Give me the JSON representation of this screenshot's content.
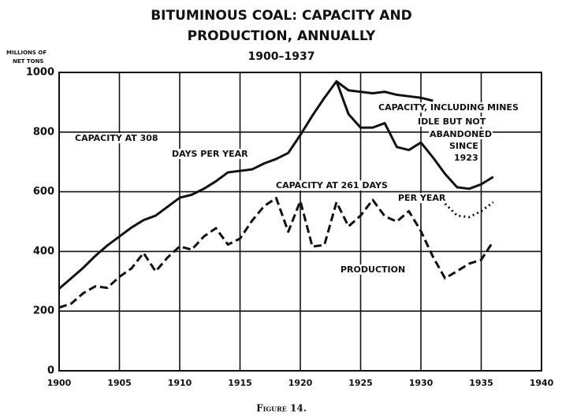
{
  "chart_data": {
    "type": "line",
    "title": [
      "BITUMINOUS COAL:  CAPACITY AND",
      "PRODUCTION, ANNUALLY"
    ],
    "subtitle": "1900–1937",
    "y_axis_label": [
      "MILLIONS OF",
      "NET TONS"
    ],
    "caption": "Figure 14.",
    "xlim": [
      1900,
      1940
    ],
    "xticks": [
      1900,
      1905,
      1910,
      1915,
      1920,
      1925,
      1930,
      1935,
      1940
    ],
    "ylim": [
      0,
      1000
    ],
    "yticks": [
      0,
      200,
      400,
      600,
      800,
      1000
    ],
    "grid": true,
    "series": [
      {
        "color": "#111111",
        "style": "solid",
        "x": [
          1900,
          1901,
          1902,
          1903,
          1904,
          1905,
          1906,
          1907,
          1908,
          1909,
          1910,
          1911,
          1912,
          1913,
          1914,
          1915,
          1916,
          1917,
          1918,
          1919,
          1920,
          1921,
          1922,
          1923,
          1924,
          1925,
          1926,
          1927,
          1928,
          1929,
          1930,
          1931,
          1932,
          1933,
          1934,
          1935,
          1936
        ],
        "values": [
          275,
          310,
          345,
          385,
          420,
          450,
          480,
          505,
          520,
          550,
          580,
          590,
          610,
          635,
          665,
          670,
          675,
          695,
          710,
          730,
          790,
          855,
          915,
          970,
          860,
          815,
          815,
          830,
          750,
          740,
          765,
          715,
          660,
          615,
          610,
          625,
          650
        ]
      },
      {
        "color": "#111111",
        "style": "solid",
        "x": [
          1923,
          1924,
          1925,
          1926,
          1927,
          1928,
          1929,
          1930,
          1931
        ],
        "values": [
          970,
          940,
          935,
          930,
          935,
          925,
          920,
          915,
          905
        ]
      },
      {
        "color": "#111111",
        "style": "dotted",
        "x": [
          1932,
          1933,
          1934,
          1935,
          1936
        ],
        "values": [
          560,
          520,
          515,
          535,
          565
        ]
      },
      {
        "color": "#111111",
        "style": "dashed",
        "x": [
          1900,
          1901,
          1902,
          1903,
          1904,
          1905,
          1906,
          1907,
          1908,
          1909,
          1910,
          1911,
          1912,
          1913,
          1914,
          1915,
          1916,
          1917,
          1918,
          1919,
          1920,
          1921,
          1922,
          1923,
          1924,
          1925,
          1926,
          1927,
          1928,
          1929,
          1930,
          1931,
          1932,
          1933,
          1934,
          1935,
          1936
        ],
        "values": [
          212,
          225,
          260,
          283,
          278,
          315,
          343,
          395,
          333,
          380,
          417,
          406,
          450,
          478,
          423,
          443,
          503,
          552,
          579,
          466,
          569,
          416,
          422,
          565,
          484,
          520,
          573,
          518,
          500,
          535,
          468,
          382,
          310,
          334,
          359,
          372,
          434
        ]
      }
    ],
    "annotations": [
      "CAPACITY AT 308",
      "DAYS PER YEAR",
      "CAPACITY, INCLUDING MINES",
      "IDLE BUT NOT",
      "ABANDONED",
      "SINCE",
      "1923",
      "CAPACITY AT 261 DAYS",
      "PER YEAR",
      "PRODUCTION"
    ]
  }
}
